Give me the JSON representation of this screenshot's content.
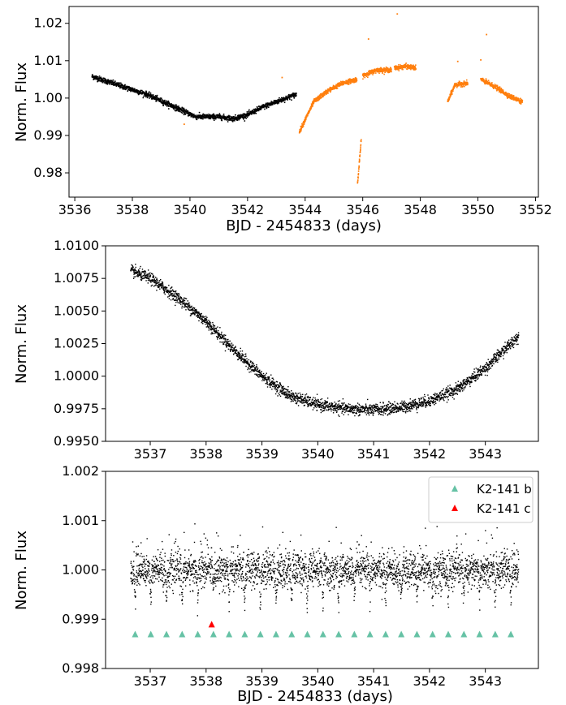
{
  "colors": {
    "ksp_black": "#000000",
    "orange": "#ff7f0e",
    "planet_b": "#66c2a5",
    "planet_c": "#ff0000"
  },
  "chart_data": [
    {
      "type": "scatter",
      "xlabel": "BJD - 2454833 (days)",
      "ylabel": "Norm. Flux",
      "xlim": [
        3535.8,
        3552.1
      ],
      "ylim": [
        0.9735,
        1.0245
      ],
      "xticks": [
        "3536",
        "3538",
        "3540",
        "3542",
        "3544",
        "3546",
        "3548",
        "3550",
        "3552"
      ],
      "yticks": [
        "0.98",
        "0.99",
        "1.00",
        "1.01",
        "1.02"
      ],
      "series": [
        {
          "color": "#000000",
          "x_range": [
            3536.6,
            3543.7
          ],
          "trend_knots": [
            [
              3536.6,
              1.0058
            ],
            [
              3537.5,
              1.0035
            ],
            [
              3538.5,
              1.001
            ],
            [
              3539.5,
              0.9975
            ],
            [
              3540.2,
              0.995
            ],
            [
              3541.0,
              0.995
            ],
            [
              3541.5,
              0.9945
            ],
            [
              3542.0,
              0.9955
            ],
            [
              3542.5,
              0.9975
            ],
            [
              3543.0,
              0.999
            ],
            [
              3543.7,
              1.001
            ]
          ]
        },
        {
          "color": "#ff7f0e",
          "segments": [
            {
              "x_range": [
                3543.8,
                3545.8
              ],
              "trend_knots": [
                [
                  3543.8,
                  0.991
                ],
                [
                  3544.3,
                  0.999
                ],
                [
                  3544.8,
                  1.002
                ],
                [
                  3545.3,
                  1.004
                ],
                [
                  3545.8,
                  1.005
                ]
              ]
            },
            {
              "x_range": [
                3545.82,
                3545.95
              ],
              "trend_knots": [
                [
                  3545.82,
                  0.977
                ],
                [
                  3545.95,
                  0.989
                ]
              ]
            },
            {
              "x_range": [
                3546.0,
                3547.0
              ],
              "trend_knots": [
                [
                  3546.0,
                  1.006
                ],
                [
                  3546.5,
                  1.0075
                ],
                [
                  3547.0,
                  1.0075
                ]
              ]
            },
            {
              "x_range": [
                3547.1,
                3547.85
              ],
              "trend_knots": [
                [
                  3547.1,
                  1.008
                ],
                [
                  3547.5,
                  1.0085
                ],
                [
                  3547.85,
                  1.008
                ]
              ]
            },
            {
              "x_range": [
                3548.95,
                3549.65
              ],
              "trend_knots": [
                [
                  3548.95,
                  0.999
                ],
                [
                  3549.2,
                  1.0035
                ],
                [
                  3549.65,
                  1.004
                ]
              ]
            },
            {
              "x_range": [
                3550.1,
                3551.55
              ],
              "trend_knots": [
                [
                  3550.1,
                  1.005
                ],
                [
                  3550.6,
                  1.003
                ],
                [
                  3551.1,
                  1.0005
                ],
                [
                  3551.55,
                  0.999
                ]
              ]
            }
          ],
          "outliers": [
            [
              3547.2,
              1.0225
            ],
            [
              3546.2,
              1.0158
            ],
            [
              3550.3,
              1.017
            ],
            [
              3549.3,
              1.0098
            ],
            [
              3550.1,
              1.0102
            ],
            [
              3543.2,
              1.0055
            ],
            [
              3539.8,
              0.993
            ]
          ]
        }
      ]
    },
    {
      "type": "scatter",
      "xlabel": "",
      "ylabel": "Norm. Flux",
      "xlim": [
        3536.2,
        3543.95
      ],
      "ylim": [
        0.995,
        1.01
      ],
      "xticks": [
        "3537",
        "3538",
        "3539",
        "3540",
        "3541",
        "3542",
        "3543"
      ],
      "yticks": [
        "0.9950",
        "0.9975",
        "1.0000",
        "1.0025",
        "1.0050",
        "1.0075",
        "1.0100"
      ],
      "series": [
        {
          "color": "#000000",
          "x_range": [
            3536.65,
            3543.6
          ],
          "trend_knots": [
            [
              3536.65,
              1.0081
            ],
            [
              3537.0,
              1.0075
            ],
            [
              3537.5,
              1.006
            ],
            [
              3538.0,
              1.0042
            ],
            [
              3538.5,
              1.002
            ],
            [
              3539.0,
              1.0
            ],
            [
              3539.5,
              0.9985
            ],
            [
              3540.0,
              0.9978
            ],
            [
              3540.5,
              0.9975
            ],
            [
              3541.0,
              0.9974
            ],
            [
              3541.5,
              0.9976
            ],
            [
              3542.0,
              0.9981
            ],
            [
              3542.5,
              0.999
            ],
            [
              3543.0,
              1.0006
            ],
            [
              3543.6,
              1.0031
            ]
          ]
        }
      ]
    },
    {
      "type": "scatter",
      "xlabel": "BJD - 2454833 (days)",
      "ylabel": "Norm. Flux",
      "xlim": [
        3536.2,
        3543.95
      ],
      "ylim": [
        0.998,
        1.002
      ],
      "xticks": [
        "3537",
        "3538",
        "3539",
        "3540",
        "3541",
        "3542",
        "3543"
      ],
      "yticks": [
        "0.998",
        "0.999",
        "1.000",
        "1.001",
        "1.002"
      ],
      "legend": {
        "placement": "top-right",
        "entries": [
          "K2-141 b",
          "K2-141 c"
        ]
      },
      "series": [
        {
          "color": "#000000",
          "x_range": [
            3536.65,
            3543.6
          ],
          "baseline": 1.0
        }
      ],
      "transits_b": {
        "first": 3536.73,
        "period": 0.2803,
        "count": 25,
        "marker_y": 0.9987
      },
      "transits_c": {
        "x": [
          3538.1
        ],
        "marker_y": 0.9989
      }
    }
  ]
}
